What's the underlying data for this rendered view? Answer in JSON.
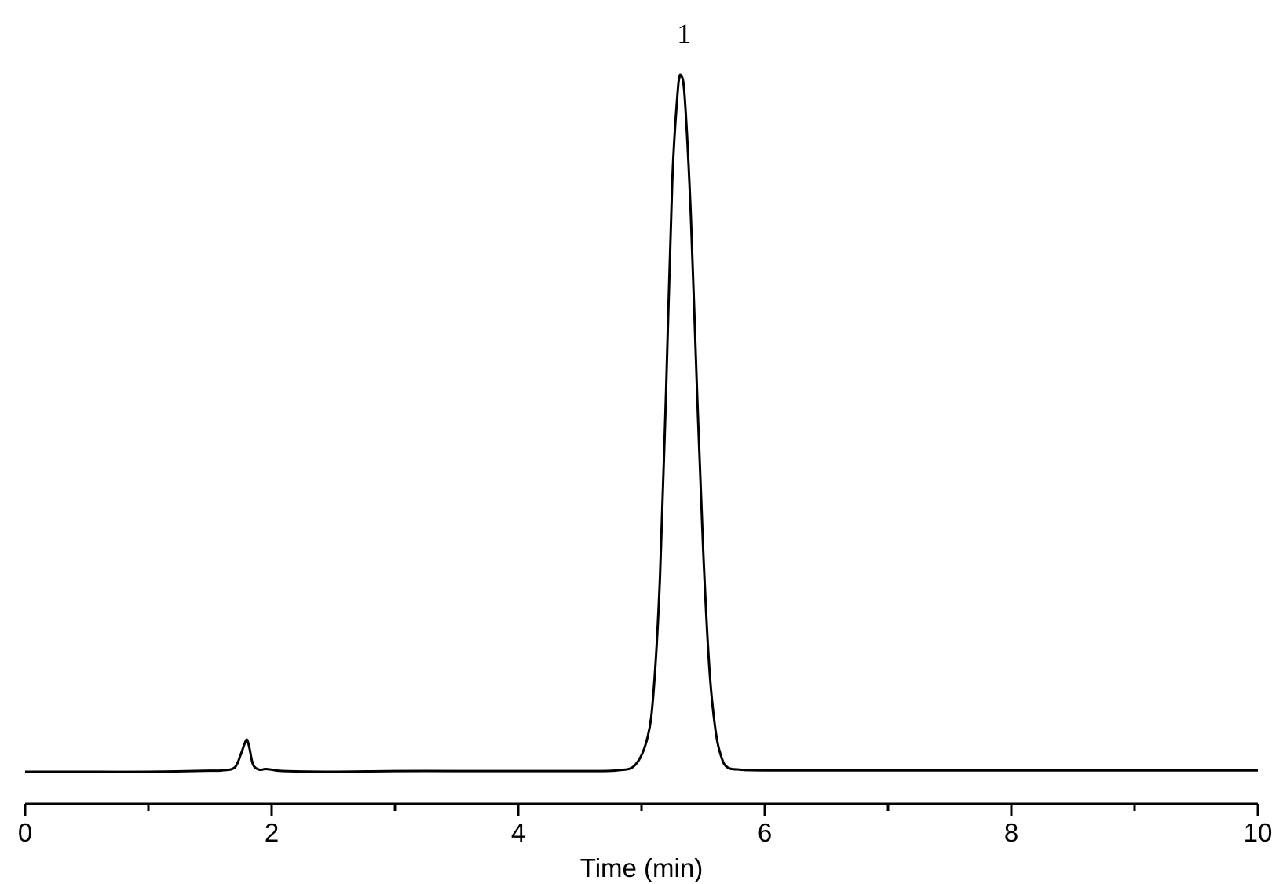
{
  "chart_data": {
    "type": "line",
    "xlabel": "Time (min)",
    "ylabel": "",
    "xlim": [
      0,
      10
    ],
    "ylim": [
      0,
      1.0
    ],
    "x_major_ticks": [
      0,
      2,
      4,
      6,
      8,
      10
    ],
    "x_minor_ticks": [
      1,
      3,
      5,
      7,
      9
    ],
    "y_axis_visible": false,
    "grid": false,
    "legend": "none",
    "line_color": "#000000",
    "series": [
      {
        "x": [
          0,
          0.5,
          1.0,
          1.5,
          1.6,
          1.7,
          1.75,
          1.78,
          1.8,
          1.82,
          1.85,
          1.9,
          1.95,
          2.0,
          2.1,
          2.5,
          3.0,
          3.5,
          4.0,
          4.5,
          4.8,
          4.95,
          5.05,
          5.1,
          5.15,
          5.2,
          5.25,
          5.3,
          5.32,
          5.35,
          5.4,
          5.45,
          5.5,
          5.55,
          5.6,
          5.65,
          5.7,
          5.8,
          6.0,
          7.0,
          8.0,
          9.0,
          10.0
        ],
        "y": [
          0.0,
          0.0,
          0.0,
          0.0015,
          0.002,
          0.006,
          0.025,
          0.04,
          0.046,
          0.034,
          0.01,
          0.003,
          0.004,
          0.003,
          0.001,
          0.0,
          0.001,
          0.001,
          0.001,
          0.001,
          0.002,
          0.01,
          0.05,
          0.12,
          0.28,
          0.55,
          0.85,
          0.99,
          1.0,
          0.97,
          0.8,
          0.55,
          0.32,
          0.15,
          0.06,
          0.02,
          0.006,
          0.003,
          0.002,
          0.002,
          0.002,
          0.002,
          0.002
        ]
      }
    ],
    "annotations": [
      {
        "text": "1",
        "x": 5.32
      }
    ]
  }
}
